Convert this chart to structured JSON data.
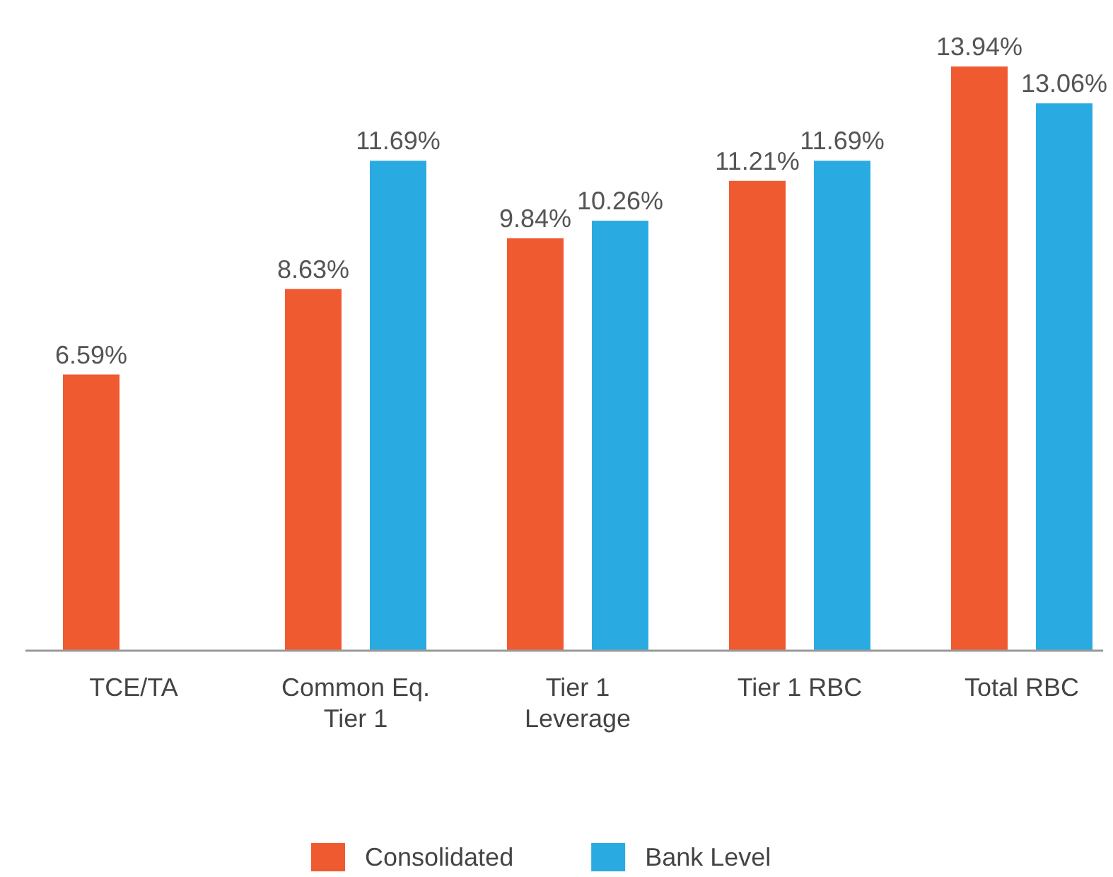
{
  "chart_data": {
    "type": "bar",
    "categories": [
      "TCE/TA",
      "Common Eq. Tier 1",
      "Tier 1 Leverage",
      "Tier 1 RBC",
      "Total RBC"
    ],
    "series": [
      {
        "name": "Consolidated",
        "color": "#f05a30",
        "values": [
          6.59,
          8.63,
          9.84,
          11.21,
          13.94
        ],
        "value_labels": [
          "6.59%",
          "8.63%",
          "9.84%",
          "11.21%",
          "13.94%"
        ]
      },
      {
        "name": "Bank Level",
        "color": "#29abe2",
        "values": [
          null,
          11.69,
          10.26,
          11.69,
          13.06
        ],
        "value_labels": [
          null,
          "11.69%",
          "10.26%",
          "11.69%",
          "13.06%"
        ]
      }
    ],
    "tick_labels": "x",
    "legend": "bottom"
  }
}
